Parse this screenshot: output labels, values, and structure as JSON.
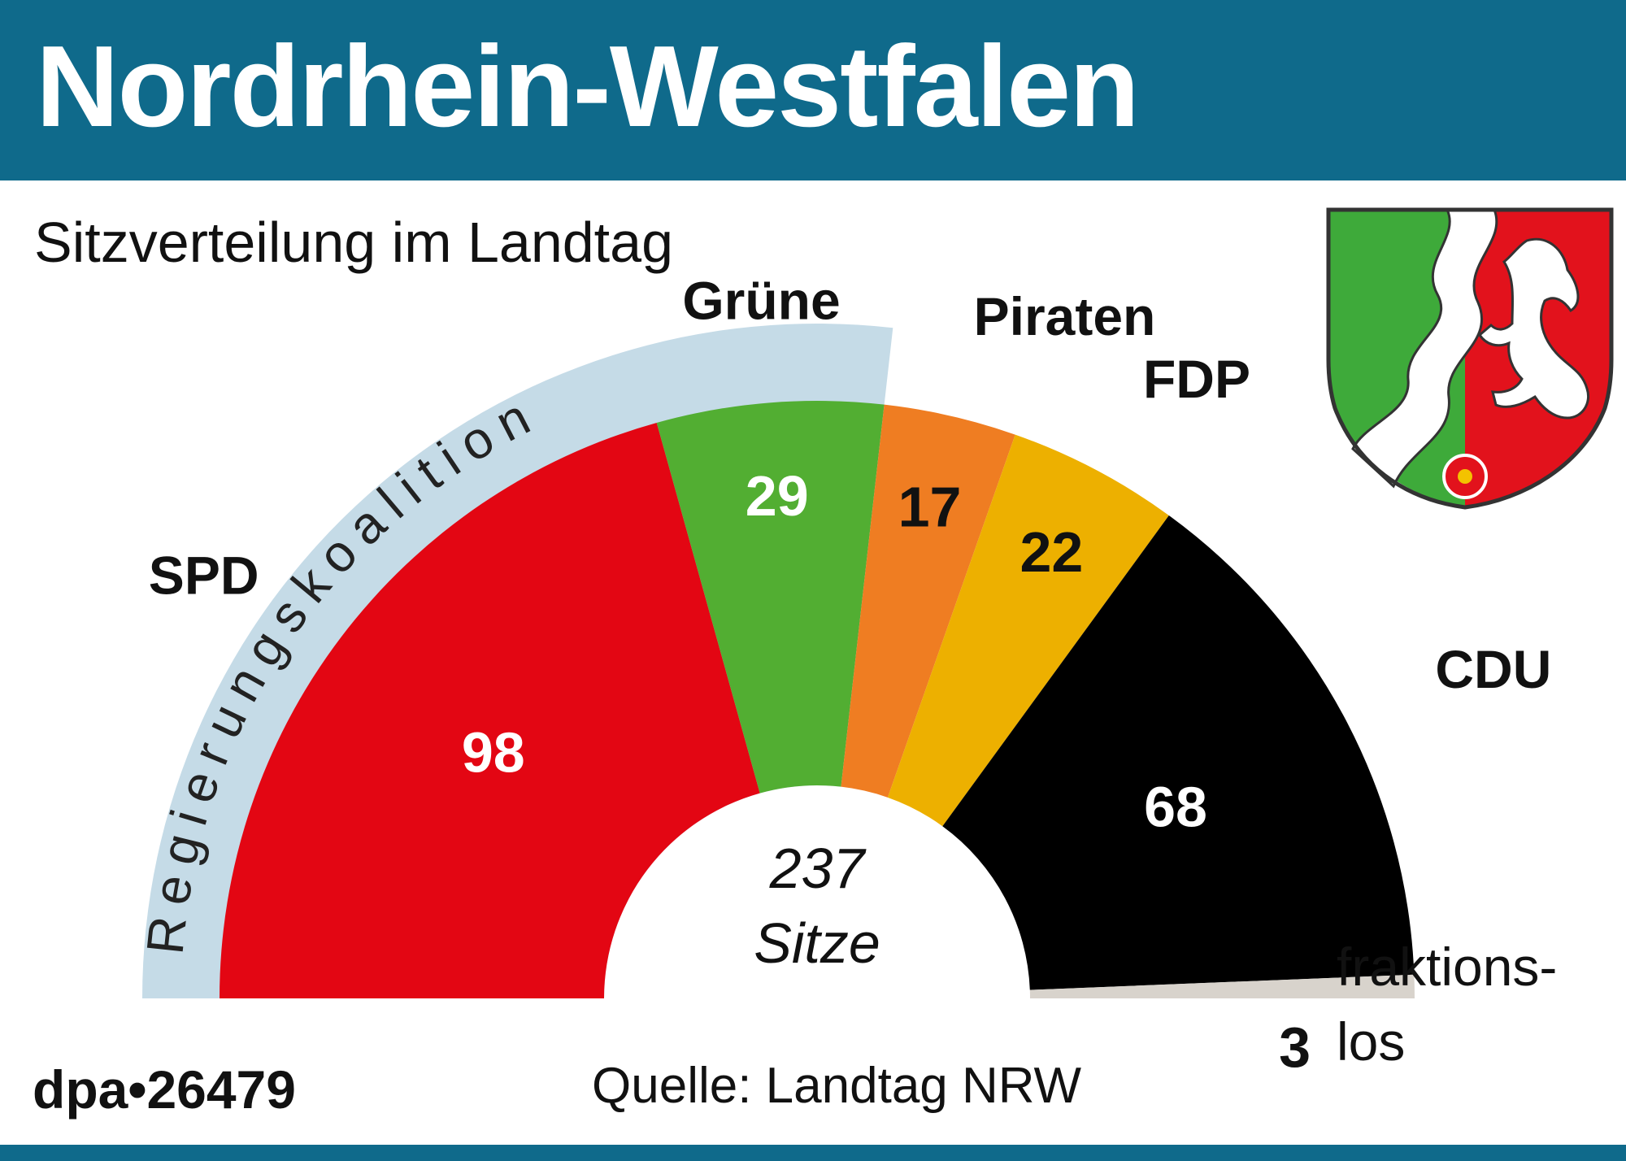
{
  "header": {
    "title": "Nordrhein-Westfalen"
  },
  "subtitle": "Sitzverteilung im Landtag",
  "footer": {
    "credit": "dpa•26479",
    "source": "Quelle: Landtag NRW"
  },
  "coalition_label": "Regierungskoalition",
  "center_label": {
    "number": "237",
    "unit": "Sitze"
  },
  "colors": {
    "header": "#0f6a8b",
    "coalition_band": "#c5dbe7",
    "coat_green": "#3eaa3a",
    "coat_red": "#e2121c"
  },
  "chart_data": {
    "type": "pie",
    "subtype": "semicircle-parliament",
    "title": "Sitzverteilung im Landtag",
    "total": 237,
    "series": [
      {
        "name": "SPD",
        "value": 98,
        "color": "#e30613",
        "value_color": "#ffffff"
      },
      {
        "name": "Grüne",
        "value": 29,
        "color": "#52ae32",
        "value_color": "#ffffff"
      },
      {
        "name": "Piraten",
        "value": 17,
        "color": "#ef7d22",
        "value_color": "#111111"
      },
      {
        "name": "FDP",
        "value": 22,
        "color": "#edb000",
        "value_color": "#111111"
      },
      {
        "name": "CDU",
        "value": 68,
        "color": "#000000",
        "value_color": "#ffffff"
      },
      {
        "name": "fraktions-\nlos",
        "value": 3,
        "color": "#d8d3cc",
        "value_color": "#111111"
      }
    ]
  }
}
